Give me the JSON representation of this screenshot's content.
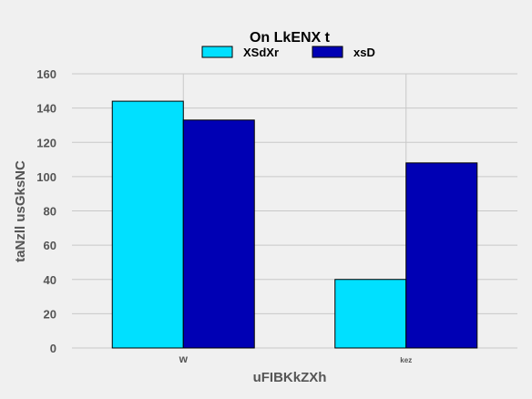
{
  "chart_data": {
    "type": "bar",
    "title": "On LkENX t",
    "xlabel": "uFIBKkZXh",
    "ylabel": "taNzll usGksNC",
    "categories": [
      "w",
      "kez"
    ],
    "category_label_sizes": [
      "large",
      "small"
    ],
    "series": [
      {
        "name": "XSdXr",
        "values": [
          144,
          40
        ],
        "color": "#00e0ff"
      },
      {
        "name": "xsD",
        "values": [
          133,
          108
        ],
        "color": "#0000b4"
      }
    ],
    "ylim": [
      0,
      160
    ],
    "yticks": [
      0,
      20,
      40,
      60,
      80,
      100,
      120,
      140,
      160
    ],
    "grid": true,
    "legend_position": "top-center"
  }
}
